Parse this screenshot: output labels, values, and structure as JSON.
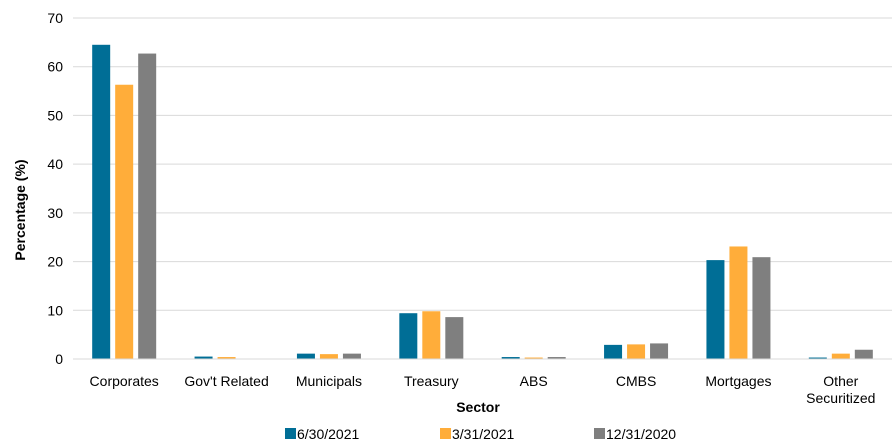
{
  "chart_data": {
    "type": "bar",
    "title": "",
    "xlabel": "Sector",
    "ylabel": "Percentage (%)",
    "ylim": [
      0,
      70
    ],
    "yticks": [
      0,
      10,
      20,
      30,
      40,
      50,
      60,
      70
    ],
    "grid": true,
    "legend_position": "bottom",
    "categories": [
      [
        "Corporates"
      ],
      [
        "Gov't Related"
      ],
      [
        "Municipals"
      ],
      [
        "Treasury"
      ],
      [
        "ABS"
      ],
      [
        "CMBS"
      ],
      [
        "Mortgages"
      ],
      [
        "Other",
        "Securitized"
      ]
    ],
    "series": [
      {
        "name": "6/30/2021",
        "color": "#006E96",
        "values": [
          64.5,
          0.5,
          1.1,
          9.4,
          0.4,
          2.9,
          20.3,
          0.3
        ]
      },
      {
        "name": "3/31/2021",
        "color": "#FFAD3A",
        "values": [
          56.3,
          0.4,
          1.0,
          9.8,
          0.3,
          3.0,
          23.1,
          1.1
        ]
      },
      {
        "name": "12/31/2020",
        "color": "#7F7F7F",
        "values": [
          62.7,
          0.0,
          1.1,
          8.6,
          0.4,
          3.2,
          20.9,
          1.9
        ]
      }
    ]
  }
}
